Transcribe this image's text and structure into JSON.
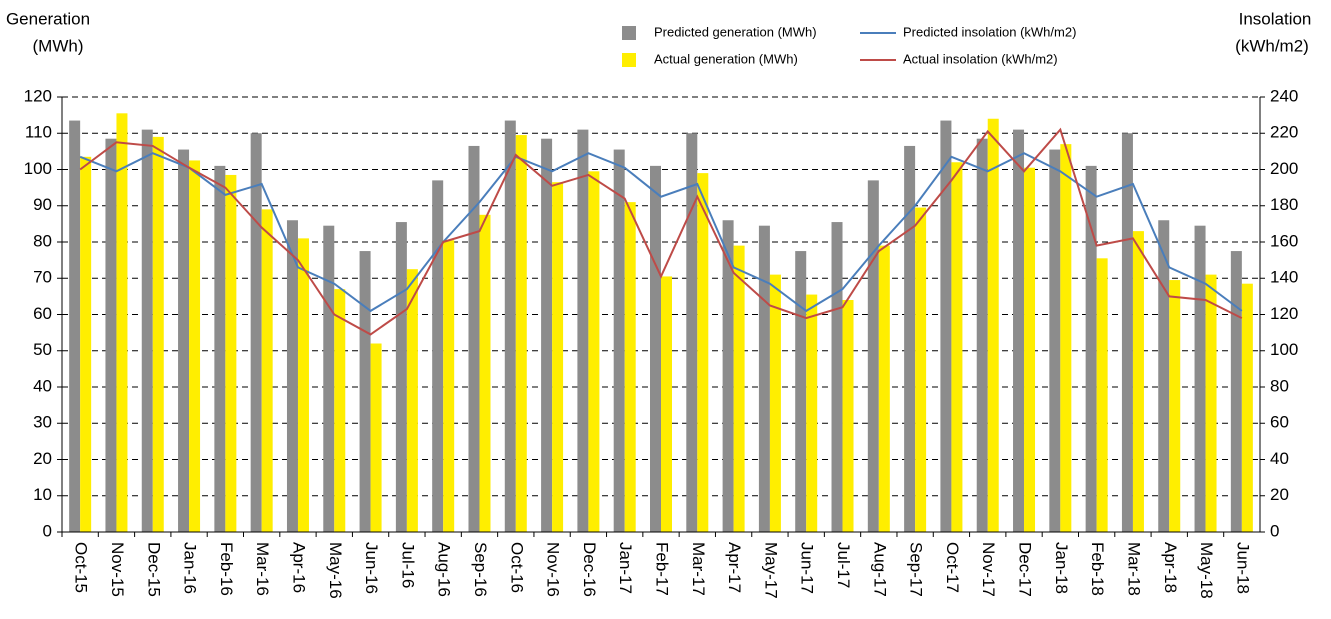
{
  "chart_data": {
    "type": "bar",
    "y_label_lines": [
      "Generation",
      "(MWh)"
    ],
    "y2_label_lines": [
      "Insolation",
      "(kWh/m2)"
    ],
    "categories": [
      "Oct-15",
      "Nov-15",
      "Dec-15",
      "Jan-16",
      "Feb-16",
      "Mar-16",
      "Apr-16",
      "May-16",
      "Jun-16",
      "Jul-16",
      "Aug-16",
      "Sep-16",
      "Oct-16",
      "Nov-16",
      "Dec-16",
      "Jan-17",
      "Feb-17",
      "Mar-17",
      "Apr-17",
      "May-17",
      "Jun-17",
      "Jul-17",
      "Aug-17",
      "Sep-17",
      "Oct-17",
      "Nov-17",
      "Dec-17",
      "Jan-18",
      "Feb-18",
      "Mar-18",
      "Apr-18",
      "May-18",
      "Jun-18"
    ],
    "series": [
      {
        "name": "Predicted generation (MWh)",
        "type": "bar",
        "color": "#8c8c8c",
        "values": [
          113.5,
          108.5,
          111,
          105.5,
          101,
          110,
          86,
          84.5,
          77.5,
          85.5,
          97,
          106.5,
          113.5,
          108.5,
          111,
          105.5,
          101,
          110,
          86,
          84.5,
          77.5,
          85.5,
          97,
          106.5,
          113.5,
          108.5,
          111,
          105.5,
          101,
          110,
          86,
          84.5,
          77.5
        ]
      },
      {
        "name": "Actual generation (MWh)",
        "type": "bar",
        "color": "#ffee00",
        "values": [
          103.5,
          115.5,
          109,
          102.5,
          98.5,
          89,
          81,
          67,
          52,
          72.5,
          80.5,
          87.5,
          109.5,
          96.5,
          99.5,
          91,
          70.5,
          99,
          79,
          71,
          65.5,
          64,
          79,
          89.5,
          102,
          114,
          100.5,
          107,
          75.5,
          83,
          69.5,
          71,
          68.5
        ]
      },
      {
        "name": "Predicted insolation (kWh/m2)",
        "type": "line",
        "axis": "y2",
        "color": "#4a7ebb",
        "values": [
          207,
          199,
          209,
          201,
          186,
          192,
          146,
          137,
          122,
          134,
          160,
          182,
          207,
          199,
          209,
          201,
          185,
          192,
          146,
          137,
          122,
          134,
          158,
          180,
          207,
          199,
          209,
          199,
          185,
          192,
          146,
          137,
          122
        ]
      },
      {
        "name": "Actual insolation (kWh/m2)",
        "type": "line",
        "axis": "y2",
        "color": "#be4b48",
        "values": [
          200,
          215,
          213,
          201,
          190,
          168,
          150,
          120,
          109,
          123,
          160,
          166,
          208,
          191,
          197,
          184,
          141,
          185,
          143,
          125,
          118,
          124,
          155,
          169,
          194,
          221,
          199,
          222,
          158,
          162,
          130,
          128,
          118
        ]
      }
    ],
    "ylim": [
      0,
      120
    ],
    "yticks": [
      0,
      10,
      20,
      30,
      40,
      50,
      60,
      70,
      80,
      90,
      100,
      110,
      120
    ],
    "y2lim": [
      0,
      240
    ],
    "y2ticks": [
      0,
      20,
      40,
      60,
      80,
      100,
      120,
      140,
      160,
      180,
      200,
      220,
      240
    ],
    "grid": true
  }
}
